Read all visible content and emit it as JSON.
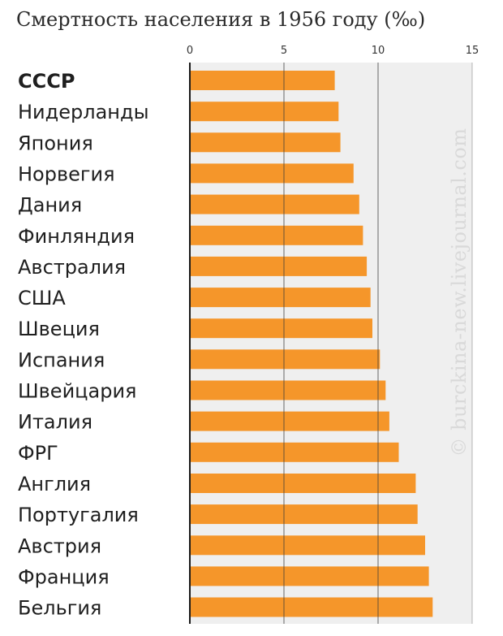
{
  "title": "Смертность населения в 1956 году (‰)",
  "watermark": "© burckina-new.livejournal.com",
  "colors": {
    "bar": "#F5962A",
    "plot_background": "#efefef",
    "grid": "#3a3a3a",
    "text": "#1f1f1f"
  },
  "chart_data": {
    "type": "bar",
    "orientation": "horizontal",
    "title": "Смертность населения в 1956 году (‰)",
    "xlabel": "",
    "ylabel": "",
    "xlim": [
      0,
      15
    ],
    "x_ticks": [
      "0",
      "5",
      "10",
      "15"
    ],
    "grid": true,
    "highlighted_category": "СССР",
    "categories": [
      "СССР",
      "Нидерланды",
      "Япония",
      "Норвегия",
      "Дания",
      "Финляндия",
      "Австралия",
      "США",
      "Швеция",
      "Испания",
      "Швейцария",
      "Италия",
      "ФРГ",
      "Англия",
      "Португалия",
      "Австрия",
      "Франция",
      "Бельгия"
    ],
    "values": [
      7.7,
      7.9,
      8.0,
      8.7,
      9.0,
      9.2,
      9.4,
      9.6,
      9.7,
      10.1,
      10.4,
      10.6,
      11.1,
      12.0,
      12.1,
      12.5,
      12.7,
      12.9
    ]
  }
}
